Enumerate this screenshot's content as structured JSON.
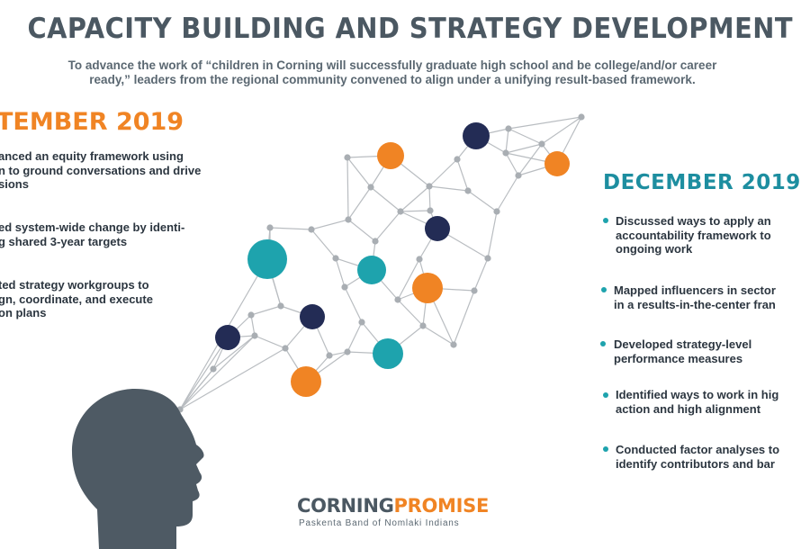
{
  "title": "CAPACITY BUILDING AND STRATEGY DEVELOPMENT",
  "subtitle_line1": "To advance the work of “children in Corning will successfully graduate high school and be college/and/or career",
  "subtitle_line2": "ready,” leaders from the regional community convened to align under a unifying result-based framework.",
  "september": {
    "heading": "TEMBER 2019",
    "items": [
      [
        "anced an equity framework using",
        "n to ground conversations and drive",
        "sions"
      ],
      [
        "ed system-wide change by identi-",
        "g shared 3-year targets"
      ],
      [
        "ted strategy workgroups to",
        "gn, coordinate, and execute",
        "on plans"
      ]
    ]
  },
  "december": {
    "heading": "DECEMBER 2019",
    "items": [
      [
        "Discussed ways to apply an",
        "accountability framework to",
        "ongoing work"
      ],
      [
        "Mapped influencers in sector",
        "in a results-in-the-center fran"
      ],
      [
        "Developed strategy-level",
        "performance measures"
      ],
      [
        "Identified ways to work in hig",
        "action and high alignment"
      ],
      [
        "Conducted factor analyses to",
        "identify contributors and bar"
      ]
    ]
  },
  "logo": {
    "part1": "CORNING",
    "part2": "PROMISE",
    "tagline": "Paskenta Band of Nomlaki Indians"
  },
  "colors": {
    "orange": "#f08424",
    "teal": "#1ea3ad",
    "navy": "#232c55",
    "gray_line": "#b9bdc1",
    "head": "#4e5a64"
  }
}
